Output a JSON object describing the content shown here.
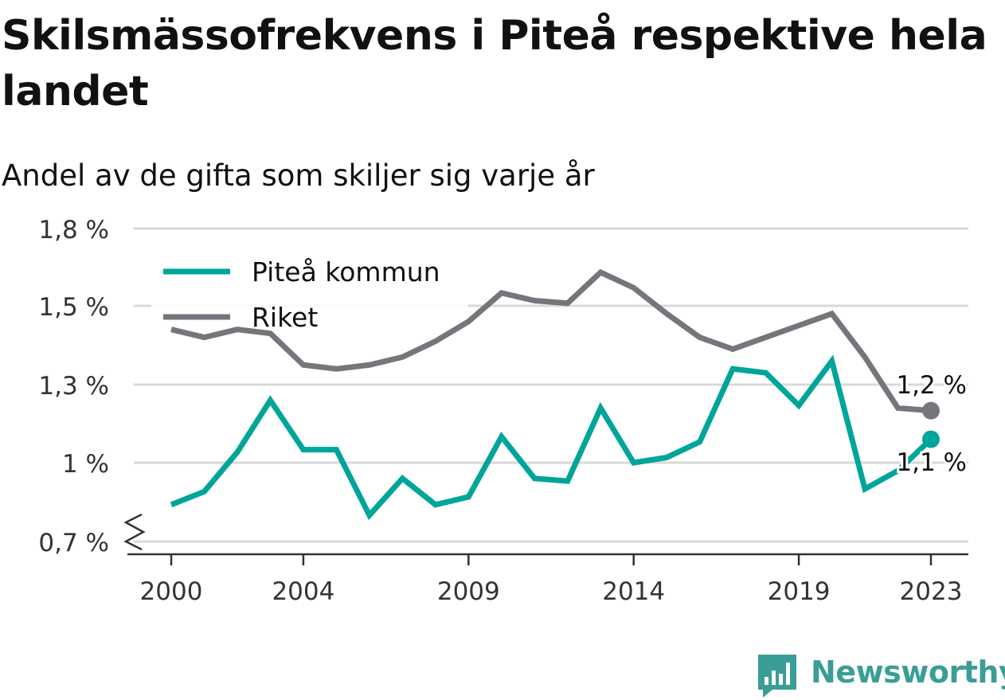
{
  "title": "Skilsmässofrekvens i Piteå respektive hela landet",
  "subtitle": "Andel av de gifta som skiljer sig varje år",
  "brand": {
    "name": "Newsworthy",
    "logo_icon": "newsworthy-chart-bubble-icon",
    "color": "#3a9e96"
  },
  "chart_data": {
    "type": "line",
    "title": "Skilsmässofrekvens i Piteå respektive hela landet",
    "subtitle": "Andel av de gifta som skiljer sig varje år",
    "xlabel": "",
    "ylabel": "",
    "x": [
      2000,
      2001,
      2002,
      2003,
      2004,
      2005,
      2006,
      2007,
      2008,
      2009,
      2010,
      2011,
      2012,
      2013,
      2014,
      2015,
      2016,
      2017,
      2018,
      2019,
      2020,
      2021,
      2022,
      2023
    ],
    "x_ticks": [
      2000,
      2004,
      2009,
      2014,
      2019,
      2023
    ],
    "x_tick_labels": [
      "2000",
      "2004",
      "2009",
      "2014",
      "2019",
      "2023"
    ],
    "ylim": [
      0.7,
      1.8
    ],
    "y_ticks": [
      0.7,
      1.0,
      1.3,
      1.5,
      1.8
    ],
    "y_tick_labels": [
      "0,7 %",
      "1 %",
      "1,3 %",
      "1,5 %",
      "1,8 %"
    ],
    "grid": true,
    "axis_break": true,
    "legend_position": "top-left",
    "series": [
      {
        "name": "Piteå kommun",
        "color": "#00a59a",
        "values": [
          0.84,
          0.89,
          1.04,
          1.24,
          1.05,
          1.05,
          0.8,
          0.94,
          0.84,
          0.87,
          1.1,
          0.94,
          0.93,
          1.21,
          1.0,
          1.02,
          1.08,
          1.34,
          1.33,
          1.22,
          1.36,
          0.9,
          0.97,
          1.09
        ],
        "end_label": "1,1 %"
      },
      {
        "name": "Riket",
        "color": "#76757c",
        "values": [
          1.44,
          1.42,
          1.44,
          1.43,
          1.35,
          1.34,
          1.35,
          1.37,
          1.41,
          1.46,
          1.55,
          1.52,
          1.51,
          1.63,
          1.57,
          1.48,
          1.42,
          1.39,
          1.42,
          1.45,
          1.48,
          1.37,
          1.21,
          1.2
        ],
        "end_label": "1,2 %"
      }
    ]
  }
}
